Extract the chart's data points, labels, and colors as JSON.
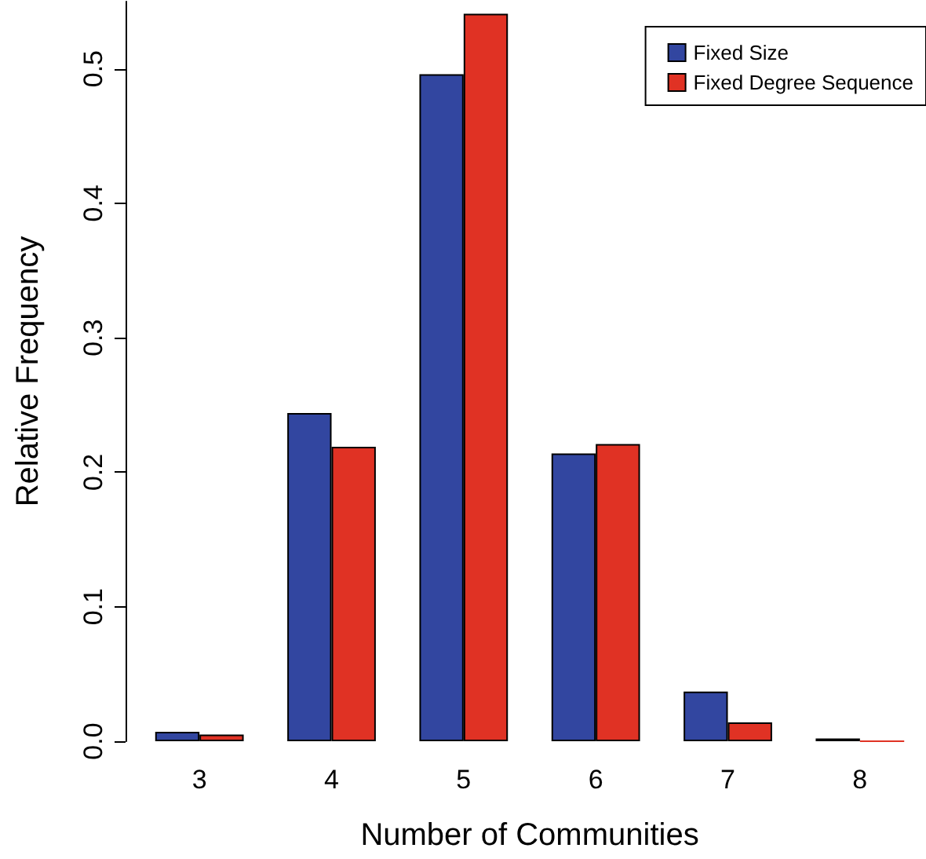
{
  "chart_data": {
    "type": "bar",
    "xlabel": "Number of Communities",
    "ylabel": "Relative Frequency",
    "categories": [
      "3",
      "4",
      "5",
      "6",
      "7",
      "8"
    ],
    "series": [
      {
        "name": "Fixed Size",
        "color": "#3246a0",
        "values": [
          0.007,
          0.244,
          0.496,
          0.214,
          0.037,
          0.002
        ]
      },
      {
        "name": "Fixed Degree Sequence",
        "color": "#e03224",
        "values": [
          0.005,
          0.219,
          0.541,
          0.221,
          0.014,
          0.0
        ]
      }
    ],
    "ylim": [
      0,
      0.55
    ],
    "yticks": [
      {
        "value": 0,
        "label": "0.0"
      },
      0.1,
      0.2,
      0.3,
      0.4,
      0.5
    ],
    "grid": false,
    "legend": "top right"
  }
}
